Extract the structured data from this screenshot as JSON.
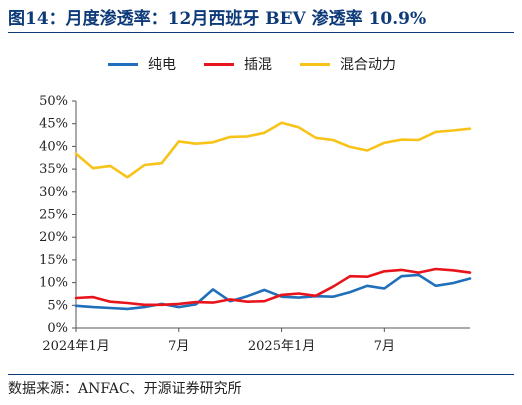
{
  "figure": {
    "title": "图14：月度渗透率：12月西班牙 BEV 渗透率 10.9%",
    "source": "数据来源：ANFAC、开源证券研究所"
  },
  "chart_data": {
    "type": "line",
    "title": "",
    "xlabel": "",
    "ylabel": "",
    "x": [
      "2024年1月",
      "2024年2月",
      "2024年3月",
      "2024年4月",
      "2024年5月",
      "2024年6月",
      "2024年7月",
      "2024年8月",
      "2024年9月",
      "2024年10月",
      "2024年11月",
      "2024年12月",
      "2025年1月",
      "2025年2月",
      "2025年3月",
      "2025年4月",
      "2025年5月",
      "2025年6月",
      "2025年7月",
      "2025年8月",
      "2025年9月",
      "2025年10月",
      "2025年11月",
      "2025年12月"
    ],
    "x_tick_labels": [
      {
        "index": 0,
        "label": "2024年1月"
      },
      {
        "index": 6,
        "label": "7月"
      },
      {
        "index": 12,
        "label": "2025年1月"
      },
      {
        "index": 18,
        "label": "7月"
      }
    ],
    "ylim": [
      0,
      50
    ],
    "y_ticks": [
      0,
      5,
      10,
      15,
      20,
      25,
      30,
      35,
      40,
      45,
      50
    ],
    "y_tick_labels": [
      "0%",
      "5%",
      "10%",
      "15%",
      "20%",
      "25%",
      "30%",
      "35%",
      "40%",
      "45%",
      "50%"
    ],
    "grid": false,
    "legend_position": "top",
    "series": [
      {
        "name": "纯电",
        "color": "#1f6fba",
        "values": [
          4.9,
          4.6,
          4.4,
          4.2,
          4.6,
          5.3,
          4.6,
          5.2,
          8.5,
          5.9,
          7.0,
          8.4,
          6.9,
          6.7,
          7.0,
          6.9,
          7.9,
          9.3,
          8.7,
          11.4,
          11.7,
          9.3,
          9.9,
          10.9
        ]
      },
      {
        "name": "插混",
        "color": "#e8141b",
        "values": [
          6.6,
          6.8,
          5.8,
          5.5,
          5.1,
          5.1,
          5.3,
          5.7,
          5.6,
          6.3,
          5.8,
          5.9,
          7.3,
          7.6,
          7.1,
          9.1,
          11.4,
          11.3,
          12.5,
          12.8,
          12.2,
          13.0,
          12.7,
          12.2
        ]
      },
      {
        "name": "混合动力",
        "color": "#f8c319",
        "values": [
          38.4,
          35.2,
          35.7,
          33.2,
          35.9,
          36.3,
          41.1,
          40.6,
          40.9,
          42.1,
          42.2,
          43.0,
          45.2,
          44.2,
          41.9,
          41.4,
          39.9,
          39.1,
          40.8,
          41.5,
          41.4,
          43.2,
          43.5,
          43.9
        ]
      }
    ]
  }
}
